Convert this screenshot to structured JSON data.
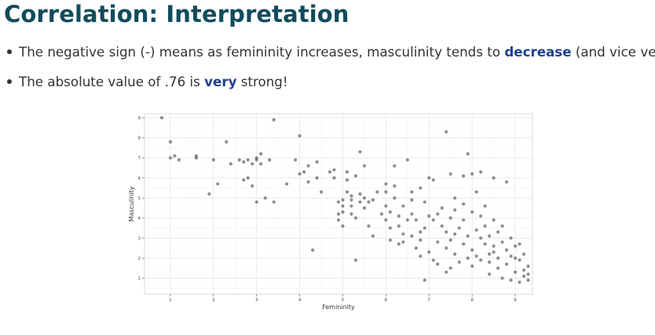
{
  "slide": {
    "title": "Correlation: Interpretation",
    "bullets": [
      {
        "pre": "The negative sign (-) means as femininity increases, masculinity tends to ",
        "highlight": "decrease",
        "post": " (and vice versa)"
      },
      {
        "pre": "The absolute value of .76 is ",
        "highlight": "very",
        "post": " strong!"
      }
    ]
  },
  "chart_data": {
    "type": "scatter",
    "xlabel": "Femininity",
    "ylabel": "Masculinity",
    "xlim": [
      0.4,
      9.4
    ],
    "ylim": [
      0.2,
      9.2
    ],
    "x_ticks": [
      1,
      2,
      3,
      4,
      5,
      6,
      7,
      8,
      9
    ],
    "y_ticks": [
      1,
      2,
      3,
      4,
      5,
      6,
      7,
      8,
      9
    ],
    "grid": true,
    "point_color": "#3d3d3d",
    "points": [
      [
        0.8,
        9.0
      ],
      [
        1.0,
        7.8
      ],
      [
        1.0,
        7.0
      ],
      [
        1.1,
        7.1
      ],
      [
        1.2,
        6.9
      ],
      [
        1.6,
        7.0
      ],
      [
        1.6,
        7.1
      ],
      [
        1.9,
        5.2
      ],
      [
        2.0,
        6.9
      ],
      [
        2.1,
        5.7
      ],
      [
        2.3,
        7.8
      ],
      [
        2.4,
        6.7
      ],
      [
        2.6,
        6.9
      ],
      [
        2.7,
        5.9
      ],
      [
        2.7,
        6.8
      ],
      [
        2.8,
        6.0
      ],
      [
        2.8,
        6.9
      ],
      [
        2.9,
        5.6
      ],
      [
        2.9,
        6.7
      ],
      [
        3.0,
        6.9
      ],
      [
        3.0,
        7.0
      ],
      [
        3.0,
        4.8
      ],
      [
        3.1,
        6.7
      ],
      [
        3.1,
        7.2
      ],
      [
        3.2,
        5.0
      ],
      [
        3.3,
        6.9
      ],
      [
        3.4,
        4.8
      ],
      [
        3.4,
        8.9
      ],
      [
        3.7,
        5.7
      ],
      [
        3.9,
        6.9
      ],
      [
        4.0,
        8.1
      ],
      [
        4.0,
        6.2
      ],
      [
        4.1,
        6.3
      ],
      [
        4.2,
        5.8
      ],
      [
        4.2,
        6.6
      ],
      [
        4.3,
        2.4
      ],
      [
        4.4,
        6.8
      ],
      [
        4.4,
        6.0
      ],
      [
        4.5,
        5.3
      ],
      [
        4.7,
        6.3
      ],
      [
        4.8,
        6.0
      ],
      [
        4.8,
        6.4
      ],
      [
        4.9,
        4.8
      ],
      [
        4.9,
        4.2
      ],
      [
        4.9,
        3.9
      ],
      [
        5.0,
        4.6
      ],
      [
        5.0,
        4.9
      ],
      [
        5.0,
        4.3
      ],
      [
        5.0,
        3.6
      ],
      [
        5.1,
        5.3
      ],
      [
        5.1,
        6.3
      ],
      [
        5.1,
        5.9
      ],
      [
        5.2,
        4.6
      ],
      [
        5.2,
        4.2
      ],
      [
        5.2,
        4.9
      ],
      [
        5.2,
        5.1
      ],
      [
        5.3,
        6.1
      ],
      [
        5.3,
        4.0
      ],
      [
        5.3,
        1.9
      ],
      [
        5.4,
        5.2
      ],
      [
        5.4,
        7.3
      ],
      [
        5.4,
        4.8
      ],
      [
        5.5,
        4.5
      ],
      [
        5.5,
        5.0
      ],
      [
        5.5,
        6.6
      ],
      [
        5.6,
        4.8
      ],
      [
        5.6,
        3.6
      ],
      [
        5.7,
        4.9
      ],
      [
        5.7,
        3.1
      ],
      [
        5.8,
        5.3
      ],
      [
        5.9,
        4.2
      ],
      [
        6.0,
        5.7
      ],
      [
        6.0,
        4.6
      ],
      [
        6.0,
        5.3
      ],
      [
        6.0,
        3.9
      ],
      [
        6.1,
        2.9
      ],
      [
        6.1,
        3.5
      ],
      [
        6.1,
        4.3
      ],
      [
        6.2,
        6.6
      ],
      [
        6.2,
        5.0
      ],
      [
        6.2,
        5.6
      ],
      [
        6.3,
        2.7
      ],
      [
        6.3,
        3.6
      ],
      [
        6.3,
        4.1
      ],
      [
        6.4,
        4.6
      ],
      [
        6.4,
        3.2
      ],
      [
        6.4,
        2.8
      ],
      [
        6.5,
        6.9
      ],
      [
        6.5,
        3.9
      ],
      [
        6.6,
        4.2
      ],
      [
        6.6,
        5.3
      ],
      [
        6.6,
        3.1
      ],
      [
        6.6,
        4.9
      ],
      [
        6.7,
        3.9
      ],
      [
        6.7,
        2.5
      ],
      [
        6.8,
        2.1
      ],
      [
        6.8,
        2.9
      ],
      [
        6.8,
        3.3
      ],
      [
        6.8,
        5.5
      ],
      [
        6.9,
        3.5
      ],
      [
        6.9,
        4.8
      ],
      [
        6.9,
        0.9
      ],
      [
        7.0,
        4.1
      ],
      [
        7.0,
        2.3
      ],
      [
        7.0,
        6.0
      ],
      [
        7.1,
        3.9
      ],
      [
        7.1,
        1.9
      ],
      [
        7.1,
        5.9
      ],
      [
        7.2,
        4.2
      ],
      [
        7.2,
        1.7
      ],
      [
        7.2,
        2.8
      ],
      [
        7.3,
        4.5
      ],
      [
        7.3,
        3.6
      ],
      [
        7.4,
        8.3
      ],
      [
        7.4,
        2.5
      ],
      [
        7.4,
        3.3
      ],
      [
        7.4,
        1.3
      ],
      [
        7.5,
        2.9
      ],
      [
        7.5,
        4.0
      ],
      [
        7.5,
        1.5
      ],
      [
        7.5,
        6.2
      ],
      [
        7.6,
        3.2
      ],
      [
        7.6,
        2.2
      ],
      [
        7.6,
        4.4
      ],
      [
        7.6,
        5.0
      ],
      [
        7.7,
        3.5
      ],
      [
        7.7,
        1.8
      ],
      [
        7.8,
        2.7
      ],
      [
        7.8,
        6.1
      ],
      [
        7.8,
        3.9
      ],
      [
        7.8,
        4.7
      ],
      [
        7.9,
        2.0
      ],
      [
        7.9,
        3.1
      ],
      [
        7.9,
        7.2
      ],
      [
        8.0,
        4.3
      ],
      [
        8.0,
        2.4
      ],
      [
        8.0,
        1.6
      ],
      [
        8.0,
        6.2
      ],
      [
        8.1,
        3.4
      ],
      [
        8.1,
        2.1
      ],
      [
        8.1,
        5.3
      ],
      [
        8.2,
        3.0
      ],
      [
        8.2,
        4.1
      ],
      [
        8.2,
        1.9
      ],
      [
        8.2,
        6.3
      ],
      [
        8.3,
        2.7
      ],
      [
        8.3,
        3.6
      ],
      [
        8.3,
        4.6
      ],
      [
        8.4,
        1.2
      ],
      [
        8.4,
        2.2
      ],
      [
        8.4,
        3.1
      ],
      [
        8.4,
        1.8
      ],
      [
        8.5,
        2.6
      ],
      [
        8.5,
        3.9
      ],
      [
        8.5,
        2.3
      ],
      [
        8.5,
        6.0
      ],
      [
        8.6,
        1.5
      ],
      [
        8.6,
        3.3
      ],
      [
        8.6,
        2.0
      ],
      [
        8.7,
        2.8
      ],
      [
        8.7,
        1.0
      ],
      [
        8.7,
        3.6
      ],
      [
        8.8,
        2.4
      ],
      [
        8.8,
        1.7
      ],
      [
        8.8,
        5.8
      ],
      [
        8.9,
        2.1
      ],
      [
        8.9,
        0.9
      ],
      [
        8.9,
        3.0
      ],
      [
        9.0,
        2.6
      ],
      [
        9.0,
        1.3
      ],
      [
        9.0,
        2.0
      ],
      [
        9.1,
        1.9
      ],
      [
        9.1,
        0.8
      ],
      [
        9.1,
        2.7
      ],
      [
        9.2,
        1.4
      ],
      [
        9.2,
        1.1
      ],
      [
        9.2,
        2.2
      ],
      [
        9.3,
        0.9
      ],
      [
        9.3,
        1.6
      ],
      [
        9.3,
        1.2
      ]
    ]
  }
}
